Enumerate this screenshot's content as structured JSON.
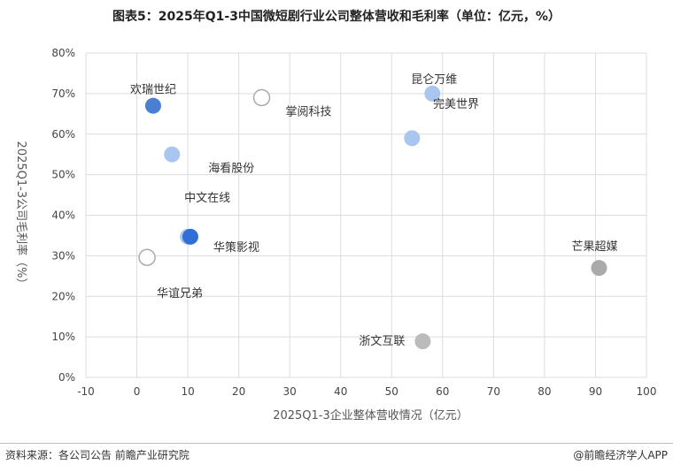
{
  "title": "图表5：2025年Q1-3中国微短剧行业公司整体营收和毛利率（单位：亿元，%）",
  "source": "资料来源：各公司公告  前瞻产业研究院",
  "brand": "@前瞻经济学人APP",
  "chart_data": {
    "type": "scatter",
    "xlabel": "2025Q1-3企业整体营收情况（亿元）",
    "ylabel": "2025Q1-3公司毛利率（%）",
    "xlim": [
      -10,
      100
    ],
    "ylim": [
      0,
      80
    ],
    "xticks": [
      "-10",
      "0",
      "10",
      "20",
      "30",
      "40",
      "50",
      "60",
      "70",
      "80",
      "90",
      "100"
    ],
    "yticks": [
      "0%",
      "10%",
      "20%",
      "30%",
      "40%",
      "50%",
      "60%",
      "70%",
      "80%"
    ],
    "grid": true,
    "legend": "none",
    "points": [
      {
        "name": "欢瑞世纪",
        "x": 3.2,
        "y": 67,
        "color": "#4a7fd4",
        "style": "filled"
      },
      {
        "name": "掌阅科技",
        "x": 24.5,
        "y": 69,
        "color": "#bbbbbb",
        "style": "open"
      },
      {
        "name": "昆仑万维",
        "x": 58,
        "y": 70,
        "color": "#a9c6f0",
        "style": "filled"
      },
      {
        "name": "完美世界",
        "x": 54,
        "y": 59,
        "color": "#a9c6f0",
        "style": "filled"
      },
      {
        "name": "海看股份",
        "x": 6.9,
        "y": 55,
        "color": "#a9c6f0",
        "style": "filled"
      },
      {
        "name": "中文在线",
        "x": 10,
        "y": 34.7,
        "color": "#a9c6f0",
        "style": "filled"
      },
      {
        "name": "华策影视",
        "x": 10.5,
        "y": 34.7,
        "color": "#2f6fd6",
        "style": "filled"
      },
      {
        "name": "华谊兄弟",
        "x": 2,
        "y": 29.6,
        "color": "#bbbbbb",
        "style": "open"
      },
      {
        "name": "芒果超媒",
        "x": 90.7,
        "y": 27,
        "color": "#aaaaaa",
        "style": "filled"
      },
      {
        "name": "浙文互联",
        "x": 56.1,
        "y": 8.9,
        "color": "#bbbbbb",
        "style": "filled"
      }
    ]
  }
}
